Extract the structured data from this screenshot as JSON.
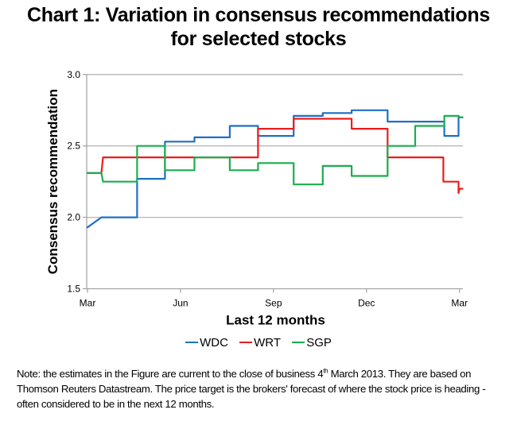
{
  "title": {
    "line1": "Chart 1: Variation in consensus recommendations",
    "line2": "for selected stocks"
  },
  "chart_data": {
    "type": "line",
    "step": true,
    "title": "Chart 1: Variation in consensus recommendations for selected stocks",
    "xlabel": "Last 12 months",
    "ylabel": "Consensus recommendation",
    "x_unit": "months since Mar 2012",
    "xlim": [
      0,
      12
    ],
    "ylim": [
      1.5,
      3.0
    ],
    "yticks": [
      1.5,
      2.0,
      2.5,
      3.0
    ],
    "ytick_labels": [
      "1.5",
      "2.0",
      "2.5",
      "3.0"
    ],
    "xticks": [
      0,
      3,
      6,
      9,
      12
    ],
    "xtick_labels": [
      "Mar",
      "Jun",
      "Sep",
      "Dec",
      "Mar"
    ],
    "grid": "horizontal",
    "legend": "bottom",
    "series": [
      {
        "name": "WDC",
        "color": "#1f6fc5",
        "points": [
          [
            0,
            1.93
          ],
          [
            0.45,
            2.0
          ],
          [
            1.6,
            2.0
          ],
          [
            1.6,
            2.27
          ],
          [
            2.5,
            2.27
          ],
          [
            2.5,
            2.53
          ],
          [
            3.45,
            2.53
          ],
          [
            3.45,
            2.56
          ],
          [
            4.59,
            2.56
          ],
          [
            4.59,
            2.64
          ],
          [
            5.5,
            2.64
          ],
          [
            5.5,
            2.57
          ],
          [
            6.65,
            2.57
          ],
          [
            6.65,
            2.71
          ],
          [
            7.59,
            2.71
          ],
          [
            7.59,
            2.73
          ],
          [
            8.52,
            2.73
          ],
          [
            8.52,
            2.75
          ],
          [
            9.68,
            2.75
          ],
          [
            9.68,
            2.67
          ],
          [
            11.51,
            2.67
          ],
          [
            11.51,
            2.57
          ],
          [
            11.97,
            2.57
          ],
          [
            11.97,
            2.7
          ],
          [
            12.1,
            2.7
          ]
        ]
      },
      {
        "name": "WRT",
        "color": "#ee1c1c",
        "points": [
          [
            0,
            2.31
          ],
          [
            0.45,
            2.31
          ],
          [
            0.5,
            2.42
          ],
          [
            5.5,
            2.42
          ],
          [
            5.5,
            2.62
          ],
          [
            6.65,
            2.62
          ],
          [
            6.65,
            2.69
          ],
          [
            8.52,
            2.69
          ],
          [
            8.52,
            2.62
          ],
          [
            9.68,
            2.62
          ],
          [
            9.68,
            2.42
          ],
          [
            11.48,
            2.42
          ],
          [
            11.48,
            2.25
          ],
          [
            11.97,
            2.25
          ],
          [
            11.97,
            2.17
          ],
          [
            12.0,
            2.2
          ],
          [
            12.1,
            2.2
          ]
        ]
      },
      {
        "name": "SGP",
        "color": "#1aae4e",
        "points": [
          [
            0,
            2.31
          ],
          [
            0.45,
            2.31
          ],
          [
            0.5,
            2.25
          ],
          [
            1.6,
            2.25
          ],
          [
            1.6,
            2.5
          ],
          [
            2.5,
            2.5
          ],
          [
            2.5,
            2.33
          ],
          [
            3.45,
            2.33
          ],
          [
            3.45,
            2.42
          ],
          [
            4.59,
            2.42
          ],
          [
            4.59,
            2.33
          ],
          [
            5.5,
            2.33
          ],
          [
            5.5,
            2.38
          ],
          [
            6.65,
            2.38
          ],
          [
            6.65,
            2.23
          ],
          [
            7.59,
            2.23
          ],
          [
            7.59,
            2.36
          ],
          [
            8.52,
            2.36
          ],
          [
            8.52,
            2.29
          ],
          [
            9.68,
            2.29
          ],
          [
            9.68,
            2.5
          ],
          [
            10.57,
            2.5
          ],
          [
            10.57,
            2.64
          ],
          [
            11.51,
            2.64
          ],
          [
            11.51,
            2.71
          ],
          [
            11.97,
            2.71
          ],
          [
            12.0,
            2.7
          ],
          [
            12.1,
            2.7
          ]
        ]
      }
    ]
  },
  "legend": [
    {
      "label": "WDC",
      "color": "#1f6fc5"
    },
    {
      "label": "WRT",
      "color": "#ee1c1c"
    },
    {
      "label": "SGP",
      "color": "#1aae4e"
    }
  ],
  "note": {
    "part1": "Note: the estimates in the Figure are current to the close of business 4",
    "superscript": "th",
    "part2": " March 2013. They are based on Thomson Reuters Datastream. The price target is the brokers' forecast of where the stock price is heading - often considered to be in the next 12 months."
  }
}
